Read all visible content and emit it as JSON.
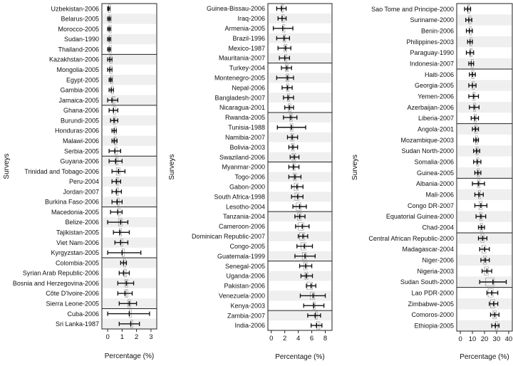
{
  "chart_data": [
    {
      "type": "forest",
      "ylabel": "Surveys",
      "xlabel": "Percentage (%)",
      "xlim": [
        -0.4,
        3.4
      ],
      "xticks": [
        0,
        1,
        2,
        3
      ],
      "grid": false,
      "rows": [
        {
          "label": "Uzbekistan-2006",
          "est": 0.05,
          "lo": 0.0,
          "hi": 0.15,
          "ref": 0.05
        },
        {
          "label": "Belarus-2005",
          "est": 0.1,
          "lo": 0.0,
          "hi": 0.2,
          "ref": 0.1
        },
        {
          "label": "Morocco-2005",
          "est": 0.1,
          "lo": 0.0,
          "hi": 0.2,
          "ref": 0.1
        },
        {
          "label": "Sudan-1990",
          "est": 0.1,
          "lo": 0.0,
          "hi": 0.2,
          "ref": 0.1
        },
        {
          "label": "Thailand-2006",
          "est": 0.1,
          "lo": 0.0,
          "hi": 0.2,
          "ref": 0.1
        },
        {
          "label": "Kazakhstan-2006",
          "est": 0.15,
          "lo": 0.0,
          "hi": 0.3,
          "ref": 0.15
        },
        {
          "label": "Mongolia-2005",
          "est": 0.15,
          "lo": 0.0,
          "hi": 0.3,
          "ref": 0.15
        },
        {
          "label": "Egypt-2005",
          "est": 0.2,
          "lo": 0.1,
          "hi": 0.3,
          "ref": 0.2
        },
        {
          "label": "Gambia-2006",
          "est": 0.25,
          "lo": 0.1,
          "hi": 0.4,
          "ref": 0.25
        },
        {
          "label": "Jamaica-2005",
          "est": 0.3,
          "lo": 0.0,
          "hi": 0.7,
          "ref": 0.4
        },
        {
          "label": "Ghana-2006",
          "est": 0.4,
          "lo": 0.1,
          "hi": 0.7,
          "ref": 0.4
        },
        {
          "label": "Burundi-2005",
          "est": 0.45,
          "lo": 0.2,
          "hi": 0.7,
          "ref": 0.4
        },
        {
          "label": "Honduras-2006",
          "est": 0.45,
          "lo": 0.3,
          "hi": 0.6,
          "ref": 0.45
        },
        {
          "label": "Malawi-2006",
          "est": 0.45,
          "lo": 0.3,
          "hi": 0.65,
          "ref": 0.5
        },
        {
          "label": "Serbia-2005",
          "est": 0.5,
          "lo": 0.1,
          "hi": 0.9,
          "ref": 0.5
        },
        {
          "label": "Guyana-2006",
          "est": 0.55,
          "lo": 0.1,
          "hi": 1.0,
          "ref": 0.6
        },
        {
          "label": "Trinidad and Tobago-2006",
          "est": 0.75,
          "lo": 0.3,
          "hi": 1.2,
          "ref": 0.6
        },
        {
          "label": "Peru-2004",
          "est": 0.6,
          "lo": 0.3,
          "hi": 0.9,
          "ref": 0.65
        },
        {
          "label": "Jordan-2007",
          "est": 0.6,
          "lo": 0.3,
          "hi": 0.95,
          "ref": 0.65
        },
        {
          "label": "Burkina Faso-2006",
          "est": 0.65,
          "lo": 0.3,
          "hi": 1.0,
          "ref": 0.7
        },
        {
          "label": "Macedonia-2005",
          "est": 0.7,
          "lo": 0.2,
          "hi": 1.0,
          "ref": 0.7
        },
        {
          "label": "Belize-2006",
          "est": 0.9,
          "lo": 0.0,
          "hi": 1.4,
          "ref": 0.75
        },
        {
          "label": "Tajikistan-2005",
          "est": 0.85,
          "lo": 0.4,
          "hi": 1.5,
          "ref": 0.8
        },
        {
          "label": "Viet Nam-2006",
          "est": 0.9,
          "lo": 0.5,
          "hi": 1.4,
          "ref": 0.9
        },
        {
          "label": "Kyrgyzstan-2005",
          "est": 1.0,
          "lo": 0.0,
          "hi": 2.3,
          "ref": 1.0
        },
        {
          "label": "Colombia-2005",
          "est": 1.1,
          "lo": 0.9,
          "hi": 1.3,
          "ref": 1.1
        },
        {
          "label": "Syrian Arab Republic-2006",
          "est": 1.1,
          "lo": 0.8,
          "hi": 1.5,
          "ref": 1.2
        },
        {
          "label": "Bosnia and Herzegovina-2006",
          "est": 1.3,
          "lo": 0.7,
          "hi": 1.8,
          "ref": 1.2
        },
        {
          "label": "Côte D'Ivoire-2006",
          "est": 1.2,
          "lo": 0.7,
          "hi": 1.7,
          "ref": 1.3
        },
        {
          "label": "Sierra Leone-2005",
          "est": 1.5,
          "lo": 0.8,
          "hi": 2.0,
          "ref": 1.4
        },
        {
          "label": "Cuba-2006",
          "est": 1.5,
          "lo": 0.0,
          "hi": 2.9,
          "ref": 1.5
        },
        {
          "label": "Sri Lanka-1987",
          "est": 1.6,
          "lo": 0.8,
          "hi": 2.2,
          "ref": 1.6
        }
      ],
      "separators_after": [
        4,
        9,
        14,
        19,
        24,
        29
      ]
    },
    {
      "type": "forest",
      "ylabel": "Surveys",
      "xlabel": "Percentage (%)",
      "xlim": [
        -0.5,
        9.0
      ],
      "xticks": [
        0,
        2,
        4,
        6,
        8
      ],
      "grid": false,
      "rows": [
        {
          "label": "Guinea-Bissau-2006",
          "est": 1.5,
          "lo": 0.8,
          "hi": 2.2,
          "ref": 1.6
        },
        {
          "label": "Iraq-2006",
          "est": 1.6,
          "lo": 1.0,
          "hi": 2.2,
          "ref": 1.6
        },
        {
          "label": "Armenia-2005",
          "est": 1.7,
          "lo": 0.3,
          "hi": 3.2,
          "ref": 1.7
        },
        {
          "label": "Brazil-1996",
          "est": 1.9,
          "lo": 0.8,
          "hi": 2.7,
          "ref": 1.8
        },
        {
          "label": "Mexico-1987",
          "est": 2.1,
          "lo": 1.0,
          "hi": 2.9,
          "ref": 1.9
        },
        {
          "label": "Mauritania-2007",
          "est": 2.0,
          "lo": 1.2,
          "hi": 2.7,
          "ref": 2.0
        },
        {
          "label": "Turkey-2004",
          "est": 2.3,
          "lo": 1.5,
          "hi": 3.0,
          "ref": 2.1
        },
        {
          "label": "Montenegro-2005",
          "est": 2.4,
          "lo": 0.8,
          "hi": 3.3,
          "ref": 2.2
        },
        {
          "label": "Nepal-2006",
          "est": 2.4,
          "lo": 1.6,
          "hi": 3.1,
          "ref": 2.3
        },
        {
          "label": "Bangladesh-2007",
          "est": 2.5,
          "lo": 1.8,
          "hi": 3.3,
          "ref": 2.4
        },
        {
          "label": "Nicaragua-2001",
          "est": 2.7,
          "lo": 2.0,
          "hi": 3.3,
          "ref": 2.5
        },
        {
          "label": "Rwanda-2005",
          "est": 2.9,
          "lo": 1.8,
          "hi": 3.8,
          "ref": 2.7
        },
        {
          "label": "Tunisia-1988",
          "est": 3.0,
          "lo": 0.9,
          "hi": 5.1,
          "ref": 2.8
        },
        {
          "label": "Namibia-2007",
          "est": 3.1,
          "lo": 2.4,
          "hi": 3.9,
          "ref": 2.9
        },
        {
          "label": "Bolivia-2003",
          "est": 3.2,
          "lo": 2.6,
          "hi": 3.9,
          "ref": 3.0
        },
        {
          "label": "Swaziland-2006",
          "est": 3.4,
          "lo": 2.8,
          "hi": 4.1,
          "ref": 3.1
        },
        {
          "label": "Myanmar-2000",
          "est": 3.3,
          "lo": 2.6,
          "hi": 4.1,
          "ref": 3.2
        },
        {
          "label": "Togo-2006",
          "est": 3.5,
          "lo": 2.6,
          "hi": 4.4,
          "ref": 3.3
        },
        {
          "label": "Gabon-2000",
          "est": 3.8,
          "lo": 3.0,
          "hi": 4.7,
          "ref": 3.4
        },
        {
          "label": "South Africa-1998",
          "est": 3.9,
          "lo": 3.0,
          "hi": 4.7,
          "ref": 3.5
        },
        {
          "label": "Lesotho-2004",
          "est": 4.2,
          "lo": 3.2,
          "hi": 5.2,
          "ref": 3.7
        },
        {
          "label": "Tanzania-2004",
          "est": 4.2,
          "lo": 3.5,
          "hi": 5.0,
          "ref": 3.9
        },
        {
          "label": "Cameroon-2006",
          "est": 4.6,
          "lo": 3.6,
          "hi": 5.6,
          "ref": 4.0
        },
        {
          "label": "Dominican Republic-2007",
          "est": 4.7,
          "lo": 4.0,
          "hi": 5.4,
          "ref": 4.2
        },
        {
          "label": "Congo-2005",
          "est": 4.9,
          "lo": 3.8,
          "hi": 6.1,
          "ref": 4.4
        },
        {
          "label": "Guatemala-1999",
          "est": 5.0,
          "lo": 3.5,
          "hi": 6.5,
          "ref": 4.6
        },
        {
          "label": "Senegal-2005",
          "est": 5.1,
          "lo": 4.2,
          "hi": 6.0,
          "ref": 4.8
        },
        {
          "label": "Uganda-2006",
          "est": 5.2,
          "lo": 4.4,
          "hi": 6.1,
          "ref": 5.0
        },
        {
          "label": "Pakistan-2006",
          "est": 5.9,
          "lo": 5.2,
          "hi": 6.6,
          "ref": 5.3
        },
        {
          "label": "Venezuela-2000",
          "est": 6.2,
          "lo": 4.3,
          "hi": 8.0,
          "ref": 5.8
        },
        {
          "label": "Kenya-2003",
          "est": 6.3,
          "lo": 4.8,
          "hi": 7.8,
          "ref": 6.2
        },
        {
          "label": "Zambia-2007",
          "est": 6.5,
          "lo": 5.4,
          "hi": 7.3,
          "ref": 6.6
        },
        {
          "label": "India-2006",
          "est": 6.7,
          "lo": 5.9,
          "hi": 7.5,
          "ref": 7.0
        }
      ],
      "separators_after": [
        5,
        10,
        15,
        20,
        25,
        30
      ]
    },
    {
      "type": "forest",
      "ylabel": "Surveys",
      "xlabel": "Percentage (%)",
      "xlim": [
        -3,
        43
      ],
      "xticks": [
        0,
        10,
        20,
        30,
        40
      ],
      "grid": false,
      "rows": [
        {
          "label": "Sao Tome and Principe-2000",
          "est": 6,
          "lo": 3.5,
          "hi": 8.5,
          "ref": 6.5
        },
        {
          "label": "Suriname-2000",
          "est": 7,
          "lo": 4.5,
          "hi": 9.5,
          "ref": 7
        },
        {
          "label": "Benin-2006",
          "est": 7.5,
          "lo": 5,
          "hi": 10,
          "ref": 7.5
        },
        {
          "label": "Philippines-2003",
          "est": 8,
          "lo": 6,
          "hi": 10,
          "ref": 8
        },
        {
          "label": "Paraguay-1990",
          "est": 8,
          "lo": 5,
          "hi": 11,
          "ref": 8.5
        },
        {
          "label": "Indonesia-2007",
          "est": 9,
          "lo": 7,
          "hi": 11,
          "ref": 9
        },
        {
          "label": "Haiti-2006",
          "est": 10,
          "lo": 7.5,
          "hi": 12.5,
          "ref": 9.5
        },
        {
          "label": "Georgia-2005",
          "est": 10,
          "lo": 7,
          "hi": 13,
          "ref": 10
        },
        {
          "label": "Yemen-2006",
          "est": 11,
          "lo": 7,
          "hi": 15,
          "ref": 10.5
        },
        {
          "label": "Azerbaijan-2006",
          "est": 11.5,
          "lo": 7.5,
          "hi": 15.5,
          "ref": 11
        },
        {
          "label": "Liberia-2007",
          "est": 12,
          "lo": 9,
          "hi": 15,
          "ref": 11.5
        },
        {
          "label": "Angola-2001",
          "est": 12.5,
          "lo": 10,
          "hi": 15,
          "ref": 12
        },
        {
          "label": "Mozambique-2003",
          "est": 13,
          "lo": 11,
          "hi": 15,
          "ref": 12.5
        },
        {
          "label": "Sudan North-2000",
          "est": 13.5,
          "lo": 11,
          "hi": 16,
          "ref": 13
        },
        {
          "label": "Somalia-2006",
          "est": 14,
          "lo": 11,
          "hi": 17,
          "ref": 13.5
        },
        {
          "label": "Guinea-2005",
          "est": 14.5,
          "lo": 12,
          "hi": 17,
          "ref": 14
        },
        {
          "label": "Albania-2000",
          "est": 15,
          "lo": 10,
          "hi": 20,
          "ref": 14.5
        },
        {
          "label": "Mali-2006",
          "est": 15.5,
          "lo": 12,
          "hi": 19,
          "ref": 15
        },
        {
          "label": "Congo DR-2007",
          "est": 17,
          "lo": 12,
          "hi": 22,
          "ref": 15.5
        },
        {
          "label": "Equatorial Guinea-2000",
          "est": 17,
          "lo": 13,
          "hi": 21,
          "ref": 16
        },
        {
          "label": "Chad-2004",
          "est": 17.5,
          "lo": 15,
          "hi": 20,
          "ref": 16.5
        },
        {
          "label": "Central African Republic-2000",
          "est": 18.5,
          "lo": 15,
          "hi": 22,
          "ref": 17
        },
        {
          "label": "Madagascar-2004",
          "est": 20,
          "lo": 16,
          "hi": 24,
          "ref": 18
        },
        {
          "label": "Niger-2006",
          "est": 20.5,
          "lo": 17,
          "hi": 24,
          "ref": 19
        },
        {
          "label": "Nigeria-2003",
          "est": 22,
          "lo": 18,
          "hi": 26,
          "ref": 20
        },
        {
          "label": "Sudan South-2000",
          "est": 27,
          "lo": 16,
          "hi": 38,
          "ref": 21
        },
        {
          "label": "Lao PDR-2000",
          "est": 26,
          "lo": 22,
          "hi": 31,
          "ref": 23
        },
        {
          "label": "Zimbabwe-2005",
          "est": 27.5,
          "lo": 24,
          "hi": 31,
          "ref": 25
        },
        {
          "label": "Comoros-2000",
          "est": 28.5,
          "lo": 25,
          "hi": 32,
          "ref": 27
        },
        {
          "label": "Ethiopia-2005",
          "est": 29,
          "lo": 26,
          "hi": 32,
          "ref": 29
        }
      ],
      "separators_after": [
        5,
        10,
        15,
        20,
        25
      ]
    }
  ]
}
